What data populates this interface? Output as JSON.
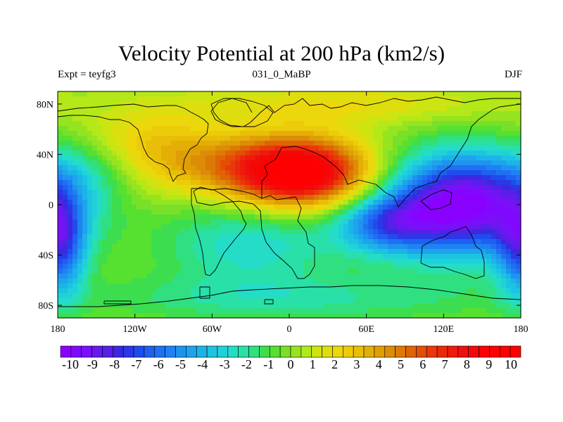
{
  "figure": {
    "title": "Velocity Potential at 200 hPa (km2/s)",
    "subtitle_left": "Expt = teyfg3",
    "subtitle_center": "031_0_MaBP",
    "subtitle_right": "DJF"
  },
  "chart_data": {
    "type": "heatmap",
    "projection": "cylindrical-equidistant",
    "xlim": [
      -180,
      180
    ],
    "ylim": [
      -90,
      90
    ],
    "x_ticks": [
      {
        "value": -180,
        "label": "180"
      },
      {
        "value": -120,
        "label": "120W"
      },
      {
        "value": -60,
        "label": "60W"
      },
      {
        "value": 0,
        "label": "0"
      },
      {
        "value": 60,
        "label": "60E"
      },
      {
        "value": 120,
        "label": "120E"
      },
      {
        "value": 180,
        "label": "180"
      }
    ],
    "y_ticks": [
      {
        "value": 80,
        "label": "80N"
      },
      {
        "value": 40,
        "label": "40N"
      },
      {
        "value": 0,
        "label": "0"
      },
      {
        "value": -40,
        "label": "40S"
      },
      {
        "value": -80,
        "label": "80S"
      }
    ],
    "colorbar": {
      "min": -11,
      "max": 11,
      "step": 0.5,
      "labels": [
        "-10",
        "-9",
        "-8",
        "-7",
        "-6",
        "-5",
        "-4",
        "-3",
        "-2",
        "-1",
        "0",
        "1",
        "2",
        "3",
        "4",
        "5",
        "6",
        "7",
        "8",
        "9",
        "10"
      ],
      "colors": [
        "#8a00ff",
        "#8008ff",
        "#7a10f8",
        "#6a18f0",
        "#5520e8",
        "#3c28e0",
        "#2a38e6",
        "#1f4cec",
        "#1f60f0",
        "#2070f2",
        "#1e82f2",
        "#1e94f0",
        "#1ea4ec",
        "#1cb4e8",
        "#1cc4e2",
        "#20d2d8",
        "#24dcc8",
        "#28e0a8",
        "#30e080",
        "#3cde50",
        "#56e030",
        "#78e028",
        "#96e420",
        "#b4e818",
        "#cce412",
        "#dede0e",
        "#ecd60c",
        "#eccc0a",
        "#e8be08",
        "#e4ae06",
        "#e09e06",
        "#dc8c06",
        "#dc7a06",
        "#e06406",
        "#e44e06",
        "#e83a08",
        "#ec280a",
        "#ee1a0c",
        "#f00e0e",
        "#f40808",
        "#f80404",
        "#ff0000",
        "#ff0000",
        "#ff0000"
      ]
    },
    "field_centers": [
      {
        "lon": 10,
        "lat": 25,
        "value": 10,
        "sx": 38,
        "sy": 20
      },
      {
        "lon": -40,
        "lat": 30,
        "value": 3,
        "sx": 45,
        "sy": 18
      },
      {
        "lon": -110,
        "lat": 45,
        "value": 3,
        "sx": 40,
        "sy": 22
      },
      {
        "lon": 40,
        "lat": 80,
        "value": 2,
        "sx": 90,
        "sy": 12
      },
      {
        "lon": 135,
        "lat": 0,
        "value": -11,
        "sx": 42,
        "sy": 28
      },
      {
        "lon": 75,
        "lat": -15,
        "value": -5,
        "sx": 28,
        "sy": 16
      },
      {
        "lon": -178,
        "lat": -35,
        "value": -6,
        "sx": 14,
        "sy": 28
      },
      {
        "lon": -150,
        "lat": 30,
        "value": -2,
        "sx": 30,
        "sy": 18
      },
      {
        "lon": -30,
        "lat": -30,
        "value": -3,
        "sx": 50,
        "sy": 24
      },
      {
        "lon": 0,
        "lat": -75,
        "value": -2,
        "sx": 120,
        "sy": 14
      }
    ]
  }
}
